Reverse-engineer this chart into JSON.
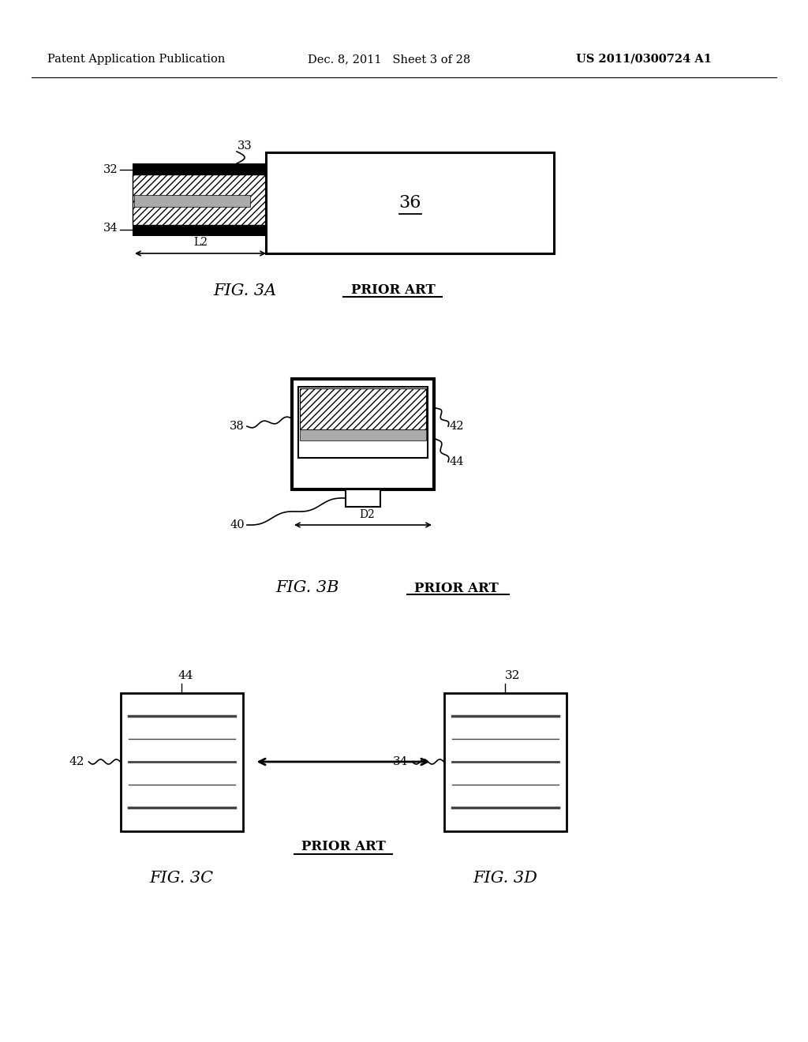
{
  "background_color": "#ffffff",
  "header_left": "Patent Application Publication",
  "header_center": "Dec. 8, 2011   Sheet 3 of 28",
  "header_right": "US 2011/0300724 A1",
  "fig3a_label": "FIG. 3A",
  "fig3b_label": "FIG. 3B",
  "fig3c_label": "FIG. 3C",
  "fig3d_label": "FIG. 3D",
  "prior_art": "PRIOR ART"
}
